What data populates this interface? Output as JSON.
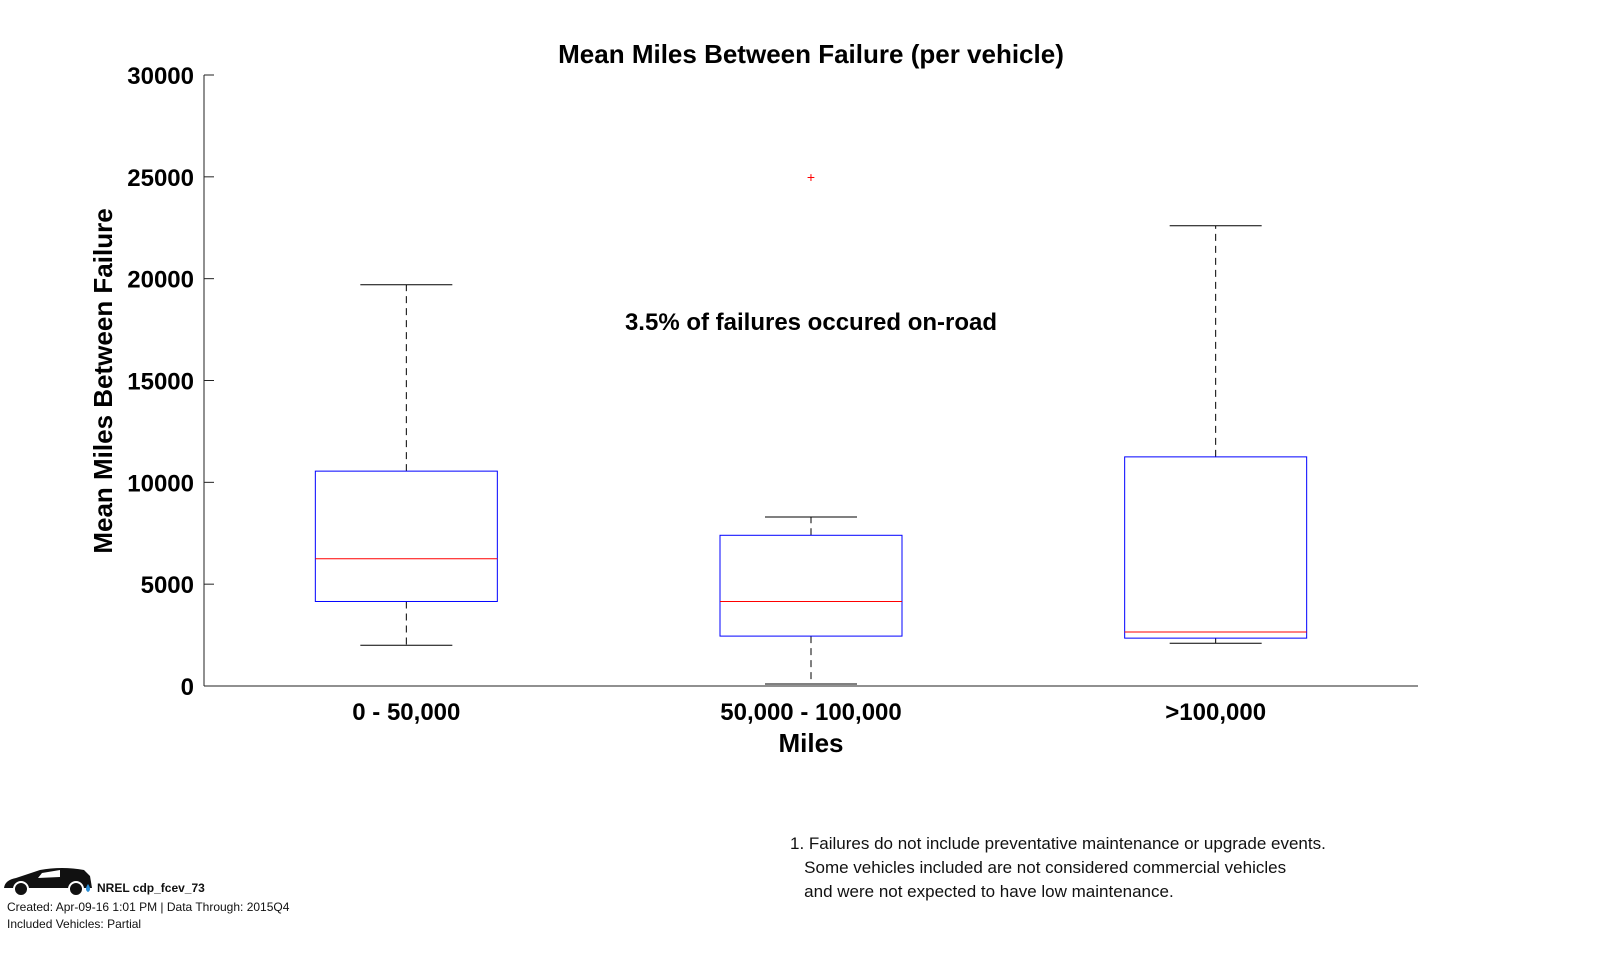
{
  "chart_data": {
    "type": "boxplot",
    "title": "Mean Miles Between Failure (per vehicle)",
    "xlabel": "Miles",
    "ylabel": "Mean Miles Between Failure",
    "ylim": [
      0,
      30000
    ],
    "yticks": [
      "0",
      "5000",
      "10000",
      "15000",
      "20000",
      "25000",
      "30000"
    ],
    "ytick_values": [
      0,
      5000,
      10000,
      15000,
      20000,
      25000,
      30000
    ],
    "categories": [
      "0 - 50,000",
      "50,000 - 100,000",
      ">100,000"
    ],
    "boxes": [
      {
        "whisker_low": 2000,
        "q1": 4150,
        "median": 6250,
        "q3": 10550,
        "whisker_high": 19700,
        "outliers": []
      },
      {
        "whisker_low": 100,
        "q1": 2450,
        "median": 4150,
        "q3": 7400,
        "whisker_high": 8300,
        "outliers": [
          25000
        ]
      },
      {
        "whisker_low": 2100,
        "q1": 2350,
        "median": 2650,
        "q3": 11250,
        "whisker_high": 22600,
        "outliers": []
      }
    ],
    "annotation": "3.5% of failures occured on-road",
    "colors": {
      "box": "#0000ff",
      "median": "#ff0000",
      "whisker": "#000000",
      "outlier": "#ff0000"
    }
  },
  "footnote": "1. Failures do not include preventative maintenance or upgrade events.\n   Some vehicles included are not considered commercial vehicles\n   and were not expected to have low maintenance.",
  "footer": {
    "id": "NREL cdp_fcev_73",
    "created": "Created: Apr-09-16  1:01 PM | Data Through: 2015Q4",
    "vehicles": "Included Vehicles: Partial"
  }
}
